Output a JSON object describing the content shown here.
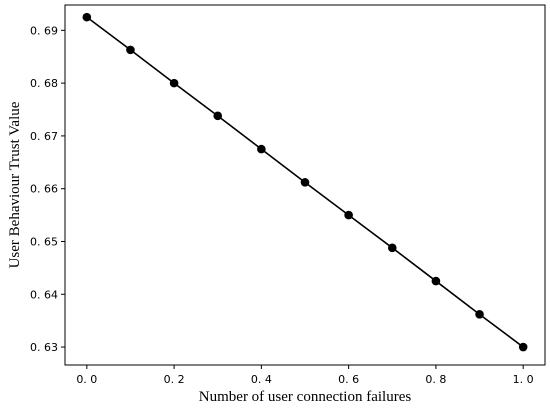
{
  "chart_data": {
    "type": "line",
    "title": "",
    "xlabel": "Number of user connection failures",
    "ylabel": "User Behaviour Trust Value",
    "x": [
      0.0,
      0.1,
      0.2,
      0.3,
      0.4,
      0.5,
      0.6,
      0.7,
      0.8,
      0.9,
      1.0
    ],
    "series": [
      {
        "values": [
          0.6925,
          0.6863,
          0.68,
          0.6738,
          0.6675,
          0.6612,
          0.655,
          0.6488,
          0.6425,
          0.6362,
          0.63
        ],
        "color": "#000000",
        "marker": "circle"
      }
    ],
    "xlim": [
      -0.05,
      1.05
    ],
    "ylim": [
      0.6266,
      0.6948
    ],
    "xticks": [
      0.0,
      0.2,
      0.4,
      0.6,
      0.8,
      1.0
    ],
    "xtick_labels": [
      "0. 0",
      "0. 2",
      "0. 4",
      "0. 6",
      "0. 8",
      "1. 0"
    ],
    "yticks": [
      0.63,
      0.64,
      0.65,
      0.66,
      0.67,
      0.68,
      0.69
    ],
    "ytick_labels": [
      "0. 63",
      "0. 64",
      "0. 65",
      "0. 66",
      "0. 67",
      "0. 68",
      "0. 69"
    ],
    "grid": false,
    "legend": "none"
  }
}
